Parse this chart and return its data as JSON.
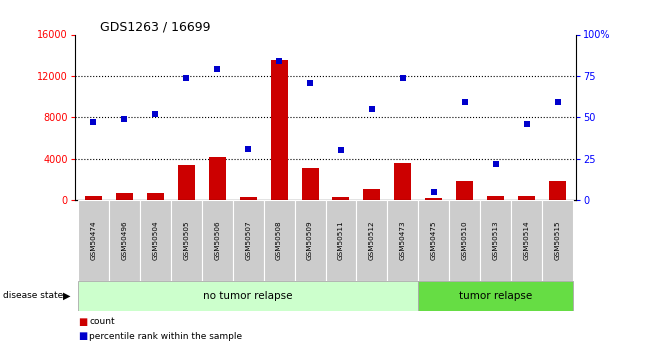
{
  "title": "GDS1263 / 16699",
  "samples": [
    "GSM50474",
    "GSM50496",
    "GSM50504",
    "GSM50505",
    "GSM50506",
    "GSM50507",
    "GSM50508",
    "GSM50509",
    "GSM50511",
    "GSM50512",
    "GSM50473",
    "GSM50475",
    "GSM50510",
    "GSM50513",
    "GSM50514",
    "GSM50515"
  ],
  "counts": [
    400,
    700,
    700,
    3400,
    4200,
    300,
    13500,
    3100,
    300,
    1100,
    3600,
    200,
    1800,
    400,
    350,
    1800
  ],
  "percentiles": [
    47,
    49,
    52,
    74,
    79,
    31,
    84,
    71,
    30,
    55,
    74,
    5,
    59,
    22,
    46,
    59
  ],
  "no_relapse_count": 11,
  "left_ylim": [
    0,
    16000
  ],
  "right_ylim": [
    0,
    100
  ],
  "left_yticks": [
    0,
    4000,
    8000,
    12000,
    16000
  ],
  "right_yticks": [
    0,
    25,
    50,
    75,
    100
  ],
  "right_yticklabels": [
    "0",
    "25",
    "50",
    "75",
    "100%"
  ],
  "bar_color": "#cc0000",
  "dot_color": "#0000cc",
  "no_relapse_color": "#ccffcc",
  "tumor_relapse_color": "#66dd44",
  "tick_bg_color": "#cccccc",
  "bar_width": 0.55
}
